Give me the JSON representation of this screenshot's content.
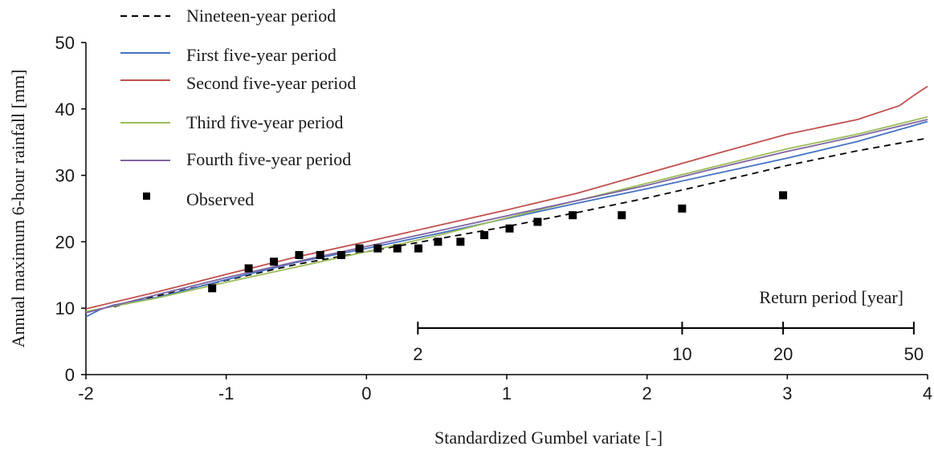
{
  "chart_data": {
    "type": "line",
    "xlabel": "Standardized Gumbel variate [-]",
    "ylabel": "Annual maximum 6-hour rainfall [mm]",
    "xlim": [
      -2,
      4
    ],
    "ylim": [
      0,
      50
    ],
    "x_ticks": [
      -2,
      -1,
      0,
      1,
      2,
      3,
      4
    ],
    "y_ticks": [
      0,
      10,
      20,
      30,
      40,
      50
    ],
    "grid": false,
    "legend_position": "top-left",
    "series": [
      {
        "name": "Nineteen-year period",
        "color": "#000000",
        "dash": "dashed",
        "x": [
          -1.8,
          -1.5,
          -1.0,
          -0.5,
          0.0,
          0.5,
          1.0,
          1.5,
          2.0,
          2.5,
          3.0,
          3.5,
          4.0
        ],
        "y": [
          10.2,
          11.8,
          14.2,
          16.6,
          18.5,
          20.4,
          22.3,
          24.4,
          26.6,
          29.0,
          31.5,
          33.7,
          35.6
        ]
      },
      {
        "name": "First five-year period",
        "color": "#4472c4",
        "dash": "solid",
        "x": [
          -2.0,
          -1.9,
          -1.8,
          -1.5,
          -1.0,
          -0.5,
          0.0,
          0.5,
          1.0,
          1.5,
          2.0,
          2.5,
          3.0,
          3.5,
          4.0
        ],
        "y": [
          8.7,
          9.8,
          10.5,
          11.6,
          14.3,
          16.9,
          19.0,
          21.2,
          23.5,
          25.8,
          28.0,
          30.3,
          32.6,
          35.1,
          38.1
        ]
      },
      {
        "name": "Second five-year period",
        "color": "#c0504d",
        "dash": "solid",
        "x": [
          -2.0,
          -1.5,
          -1.0,
          -0.5,
          0.0,
          0.5,
          1.0,
          1.5,
          2.0,
          2.5,
          3.0,
          3.5,
          3.8,
          3.9,
          4.0
        ],
        "y": [
          9.9,
          12.4,
          15.1,
          17.7,
          20.0,
          22.4,
          24.8,
          27.3,
          30.3,
          33.3,
          36.2,
          38.4,
          40.5,
          42.0,
          43.4
        ]
      },
      {
        "name": "Third five-year period",
        "color": "#9bbb59",
        "dash": "solid",
        "x": [
          -2.0,
          -1.5,
          -1.0,
          -0.5,
          0.0,
          0.5,
          1.0,
          1.5,
          2.0,
          2.5,
          3.0,
          3.5,
          4.0
        ],
        "y": [
          9.5,
          11.5,
          13.9,
          16.2,
          18.5,
          20.9,
          23.6,
          26.2,
          28.8,
          31.4,
          34.0,
          36.2,
          38.8
        ]
      },
      {
        "name": "Fourth five-year period",
        "color": "#8064a2",
        "dash": "solid",
        "x": [
          -2.0,
          -1.5,
          -1.0,
          -0.5,
          0.0,
          0.5,
          1.0,
          1.5,
          2.0,
          2.5,
          3.0,
          3.5,
          4.0
        ],
        "y": [
          9.3,
          12.0,
          14.6,
          17.0,
          19.3,
          21.6,
          23.9,
          26.2,
          28.5,
          31.1,
          33.6,
          35.9,
          38.4
        ]
      }
    ],
    "observed": {
      "name": "Observed",
      "color": "#000000",
      "x": [
        -1.1,
        -0.84,
        -0.66,
        -0.48,
        -0.33,
        -0.18,
        -0.05,
        0.08,
        0.22,
        0.37,
        0.51,
        0.67,
        0.84,
        1.02,
        1.22,
        1.47,
        1.82,
        2.25,
        2.97
      ],
      "y": [
        13,
        16,
        17,
        18,
        18,
        18,
        19,
        19,
        19,
        19,
        20,
        20,
        21,
        22,
        23,
        24,
        24,
        25,
        27
      ]
    },
    "return_period": {
      "label": "Return period [year]",
      "ticks": [
        {
          "label": "2",
          "x": 0.3665
        },
        {
          "label": "10",
          "x": 2.2504
        },
        {
          "label": "20",
          "x": 2.9702
        },
        {
          "label": "50",
          "x": 3.9019
        }
      ],
      "y": 7
    }
  }
}
